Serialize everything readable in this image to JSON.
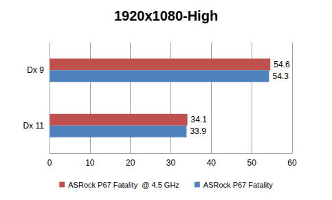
{
  "chart_data": {
    "type": "bar",
    "orientation": "horizontal",
    "title": "1920x1080-High",
    "categories": [
      "Dx 9",
      "Dx 11"
    ],
    "series": [
      {
        "name": "ASRock P67 Fatality  @ 4.5 GHz",
        "color": "#c0504d",
        "values": [
          54.6,
          34.1
        ]
      },
      {
        "name": "ASRock P67 Fatality",
        "color": "#4f81bd",
        "values": [
          54.3,
          33.9
        ]
      }
    ],
    "xlim": [
      0,
      60
    ],
    "xticks": [
      0,
      10,
      20,
      30,
      40,
      50,
      60
    ],
    "grid": true,
    "legend": "bottom",
    "data_labels": true
  }
}
